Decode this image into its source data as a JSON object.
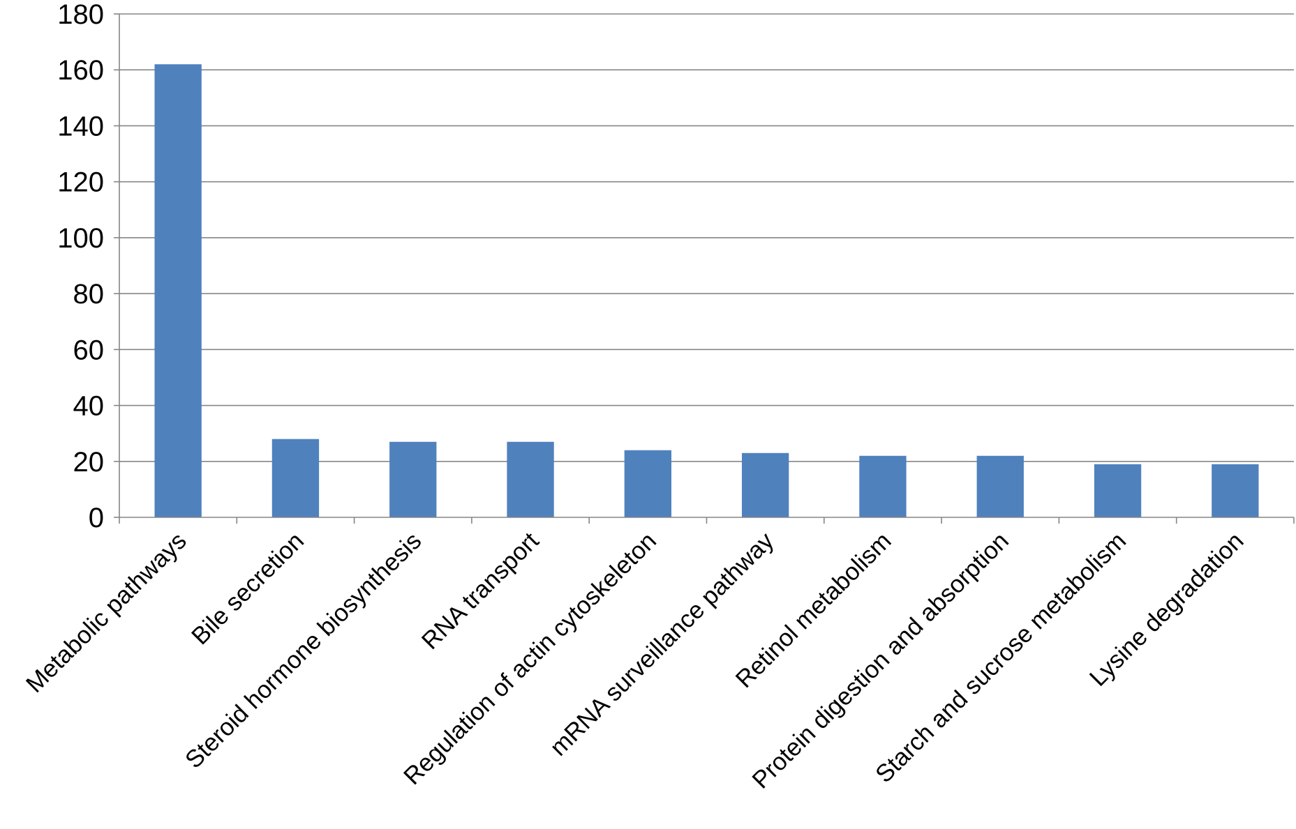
{
  "chart_data": {
    "type": "bar",
    "title": "",
    "xlabel": "",
    "ylabel": "",
    "categories": [
      "Metabolic pathways",
      "Bile secretion",
      "Steroid hormone biosynthesis",
      "RNA transport",
      "Regulation of actin cytoskeleton",
      "mRNA surveillance pathway",
      "Retinol metabolism",
      "Protein digestion and absorption",
      "Starch and sucrose metabolism",
      "Lysine degradation"
    ],
    "values": [
      162,
      28,
      27,
      27,
      24,
      23,
      22,
      22,
      19,
      19
    ],
    "ylim": [
      0,
      180
    ],
    "yticks": [
      "0",
      "20",
      "40",
      "60",
      "80",
      "100",
      "120",
      "140",
      "160",
      "180"
    ],
    "grid": true,
    "legend": "none",
    "bar_color": "#4f81bd",
    "grid_color": "#868686"
  }
}
